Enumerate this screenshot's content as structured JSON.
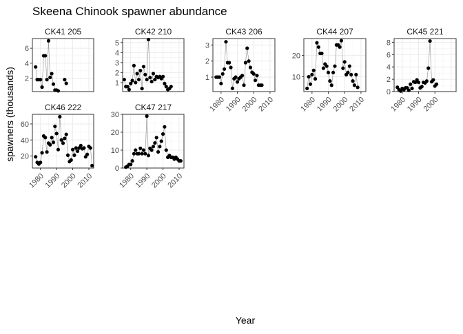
{
  "chart_data": {
    "type": "scatter",
    "title": "Skeena Chinook spawner abundance",
    "xlabel": "Year",
    "ylabel": "spawners (thousands)",
    "connect_points": true,
    "grid": true,
    "facets": [
      {
        "name": "CK41 205",
        "ylim": [
          0.2,
          7.3
        ],
        "yticks": [
          2,
          4,
          6
        ],
        "xticks": [],
        "points": [
          [
            1977,
            3.5
          ],
          [
            1978,
            1.8
          ],
          [
            1979,
            1.8
          ],
          [
            1980,
            1.8
          ],
          [
            1981,
            0.8
          ],
          [
            1982,
            5.0
          ],
          [
            1983,
            5.0
          ],
          [
            1984,
            1.8
          ],
          [
            1985,
            7.0
          ],
          [
            1986,
            2.1
          ],
          [
            1987,
            2.6
          ],
          [
            1988,
            1.2
          ],
          [
            1989,
            0.4
          ],
          [
            1990,
            0.4
          ],
          [
            1991,
            0.3
          ],
          [
            1995,
            1.8
          ],
          [
            1996,
            1.3
          ]
        ]
      },
      {
        "name": "CK42 210",
        "ylim": [
          0.1,
          5.4
        ],
        "yticks": [
          1,
          2,
          3,
          4,
          5
        ],
        "xticks": [],
        "points": [
          [
            1976,
            1.3
          ],
          [
            1977,
            0.6
          ],
          [
            1978,
            0.6
          ],
          [
            1979,
            0.3
          ],
          [
            1980,
            0.9
          ],
          [
            1981,
            1.2
          ],
          [
            1982,
            2.7
          ],
          [
            1983,
            1.0
          ],
          [
            1984,
            1.9
          ],
          [
            1985,
            1.3
          ],
          [
            1986,
            2.2
          ],
          [
            1987,
            0.4
          ],
          [
            1988,
            2.6
          ],
          [
            1989,
            1.8
          ],
          [
            1990,
            1.3
          ],
          [
            1991,
            5.3
          ],
          [
            1992,
            1.5
          ],
          [
            1993,
            1.1
          ],
          [
            1994,
            1.9
          ],
          [
            1995,
            1.3
          ],
          [
            1996,
            1.6
          ],
          [
            1997,
            1.5
          ],
          [
            1998,
            1.6
          ],
          [
            1999,
            1.4
          ],
          [
            2000,
            1.6
          ],
          [
            2001,
            0.9
          ],
          [
            2002,
            0.6
          ],
          [
            2003,
            0.3
          ],
          [
            2004,
            0.4
          ],
          [
            2005,
            0.6
          ]
        ]
      },
      {
        "name": "CK43 206",
        "ylim": [
          0.1,
          3.4
        ],
        "yticks": [
          1,
          2,
          3
        ],
        "xticks": [
          1980,
          1990,
          2000,
          2010
        ],
        "points": [
          [
            1977,
            1.0
          ],
          [
            1978,
            1.0
          ],
          [
            1979,
            1.0
          ],
          [
            1980,
            0.6
          ],
          [
            1981,
            1.2
          ],
          [
            1982,
            1.5
          ],
          [
            1983,
            3.2
          ],
          [
            1984,
            1.9
          ],
          [
            1985,
            1.9
          ],
          [
            1986,
            1.6
          ],
          [
            1987,
            0.3
          ],
          [
            1988,
            0.9
          ],
          [
            1989,
            1.0
          ],
          [
            1990,
            0.7
          ],
          [
            1991,
            0.9
          ],
          [
            1992,
            1.0
          ],
          [
            1993,
            1.1
          ],
          [
            1994,
            0.5
          ],
          [
            1995,
            1.9
          ],
          [
            1996,
            2.8
          ],
          [
            1997,
            2.0
          ],
          [
            1998,
            1.6
          ],
          [
            1999,
            1.3
          ],
          [
            2000,
            1.2
          ],
          [
            2001,
            0.8
          ],
          [
            2002,
            1.1
          ],
          [
            2003,
            0.5
          ],
          [
            2004,
            0.5
          ],
          [
            2005,
            0.5
          ]
        ]
      },
      {
        "name": "CK44 207",
        "ylim": [
          3,
          28
        ],
        "yticks": [
          10,
          20
        ],
        "xticks": [
          1980,
          1990,
          2000,
          2010
        ],
        "points": [
          [
            1977,
            4.5
          ],
          [
            1978,
            10
          ],
          [
            1979,
            6.5
          ],
          [
            1980,
            11
          ],
          [
            1981,
            13
          ],
          [
            1982,
            9
          ],
          [
            1983,
            26
          ],
          [
            1984,
            24
          ],
          [
            1985,
            21
          ],
          [
            1986,
            21
          ],
          [
            1987,
            14
          ],
          [
            1988,
            16
          ],
          [
            1989,
            15
          ],
          [
            1990,
            12
          ],
          [
            1991,
            8
          ],
          [
            1992,
            6
          ],
          [
            1993,
            12
          ],
          [
            1994,
            15
          ],
          [
            1995,
            25
          ],
          [
            1996,
            25
          ],
          [
            1997,
            24
          ],
          [
            1998,
            27
          ],
          [
            1999,
            14
          ],
          [
            2000,
            17
          ],
          [
            2001,
            11
          ],
          [
            2002,
            12
          ],
          [
            2003,
            15
          ],
          [
            2004,
            11
          ],
          [
            2005,
            8
          ],
          [
            2006,
            6
          ],
          [
            2007,
            11
          ],
          [
            2008,
            5
          ]
        ]
      },
      {
        "name": "CK45 221",
        "ylim": [
          0,
          8.6
        ],
        "yticks": [
          0,
          2,
          4,
          6,
          8
        ],
        "xticks": [
          1980,
          1990,
          2000
        ],
        "points": [
          [
            1977,
            0.7
          ],
          [
            1978,
            0.3
          ],
          [
            1979,
            0.1
          ],
          [
            1980,
            0.5
          ],
          [
            1981,
            0.3
          ],
          [
            1982,
            0.6
          ],
          [
            1983,
            0.6
          ],
          [
            1984,
            0.2
          ],
          [
            1985,
            1.2
          ],
          [
            1986,
            0.5
          ],
          [
            1987,
            1.6
          ],
          [
            1988,
            1.5
          ],
          [
            1989,
            1.9
          ],
          [
            1990,
            1.5
          ],
          [
            1991,
            0.6
          ],
          [
            1992,
            0.8
          ],
          [
            1993,
            1.5
          ],
          [
            1994,
            1.4
          ],
          [
            1995,
            1.7
          ],
          [
            1996,
            3.8
          ],
          [
            1997,
            8.2
          ],
          [
            1998,
            1.6
          ],
          [
            1999,
            1.9
          ],
          [
            2000,
            0.9
          ],
          [
            2001,
            1.2
          ]
        ]
      },
      {
        "name": "CK46 222",
        "ylim": [
          5,
          72
        ],
        "yticks": [
          20,
          40,
          60
        ],
        "xticks": [
          1980,
          1990,
          2000,
          2010
        ],
        "points": [
          [
            1977,
            19
          ],
          [
            1978,
            12
          ],
          [
            1979,
            10
          ],
          [
            1980,
            12
          ],
          [
            1981,
            24
          ],
          [
            1982,
            45
          ],
          [
            1983,
            43
          ],
          [
            1984,
            25
          ],
          [
            1985,
            36
          ],
          [
            1986,
            34
          ],
          [
            1987,
            43
          ],
          [
            1988,
            37
          ],
          [
            1989,
            57
          ],
          [
            1990,
            48
          ],
          [
            1991,
            28
          ],
          [
            1992,
            69
          ],
          [
            1993,
            40
          ],
          [
            1994,
            36
          ],
          [
            1995,
            42
          ],
          [
            1996,
            47
          ],
          [
            1997,
            21
          ],
          [
            1998,
            13
          ],
          [
            1999,
            15
          ],
          [
            2000,
            28
          ],
          [
            2001,
            21
          ],
          [
            2002,
            30
          ],
          [
            2003,
            26
          ],
          [
            2004,
            30
          ],
          [
            2005,
            33
          ],
          [
            2006,
            29
          ],
          [
            2007,
            30
          ],
          [
            2008,
            19
          ],
          [
            2009,
            22
          ],
          [
            2010,
            32
          ],
          [
            2011,
            30
          ],
          [
            2012,
            8
          ]
        ]
      },
      {
        "name": "CK47 217",
        "ylim": [
          0,
          30
        ],
        "yticks": [
          0,
          10,
          20,
          30
        ],
        "xticks": [
          1980,
          1990,
          2000,
          2010
        ],
        "points": [
          [
            1977,
            0.5
          ],
          [
            1978,
            1
          ],
          [
            1979,
            2
          ],
          [
            1980,
            2
          ],
          [
            1981,
            4
          ],
          [
            1982,
            8
          ],
          [
            1983,
            10
          ],
          [
            1984,
            8
          ],
          [
            1985,
            8
          ],
          [
            1986,
            11
          ],
          [
            1987,
            8
          ],
          [
            1988,
            10
          ],
          [
            1989,
            8
          ],
          [
            1990,
            29
          ],
          [
            1991,
            7
          ],
          [
            1992,
            11
          ],
          [
            1993,
            10
          ],
          [
            1994,
            12
          ],
          [
            1995,
            14
          ],
          [
            1996,
            17
          ],
          [
            1997,
            9
          ],
          [
            1998,
            12
          ],
          [
            1999,
            15
          ],
          [
            2000,
            19
          ],
          [
            2001,
            23
          ],
          [
            2002,
            10
          ],
          [
            2003,
            6
          ],
          [
            2004,
            7
          ],
          [
            2005,
            6
          ],
          [
            2006,
            6
          ],
          [
            2007,
            5
          ],
          [
            2008,
            6
          ],
          [
            2009,
            5
          ],
          [
            2010,
            4
          ],
          [
            2011,
            4
          ]
        ]
      }
    ]
  }
}
